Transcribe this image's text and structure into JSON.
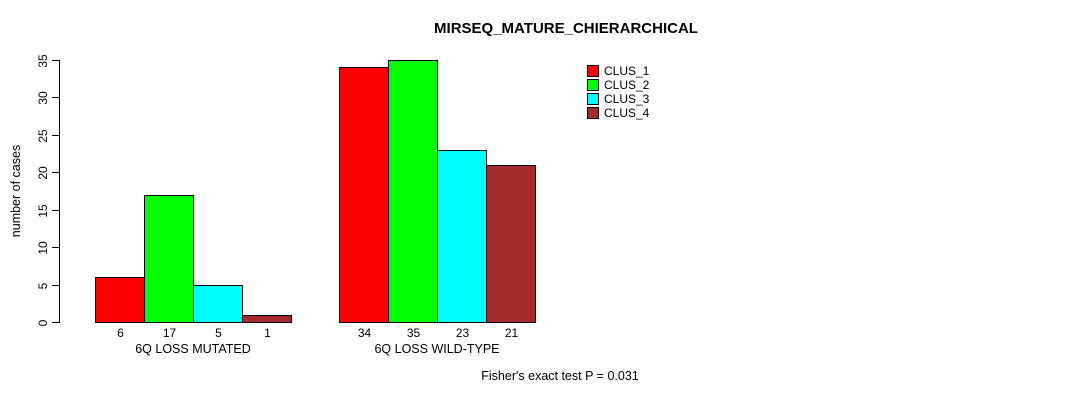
{
  "title": "MIRSEQ_MATURE_CHIERARCHICAL",
  "annotation": "Fisher's exact test P = 0.031",
  "chart_data": {
    "type": "bar",
    "title": "MIRSEQ_MATURE_CHIERARCHICAL",
    "xlabel": "",
    "ylabel": "number of cases",
    "categories": [
      "6Q LOSS MUTATED",
      "6Q LOSS WILD-TYPE"
    ],
    "series": [
      {
        "name": "CLUS_1",
        "color": "#FF0000",
        "values": [
          6,
          34
        ]
      },
      {
        "name": "CLUS_2",
        "color": "#00FF00",
        "values": [
          17,
          35
        ]
      },
      {
        "name": "CLUS_3",
        "color": "#00FFFF",
        "values": [
          5,
          23
        ]
      },
      {
        "name": "CLUS_4",
        "color": "#A52A2A",
        "values": [
          1,
          21
        ]
      }
    ],
    "ylim": [
      0,
      35
    ],
    "yticks": [
      0,
      5,
      10,
      15,
      20,
      25,
      30,
      35
    ],
    "grid": false,
    "legend_position": "top-right",
    "bar_value_labels_shown": true,
    "annotation": "Fisher's exact test P = 0.031",
    "colors": {
      "axis": "#000000",
      "background": "#FFFFFF"
    }
  }
}
